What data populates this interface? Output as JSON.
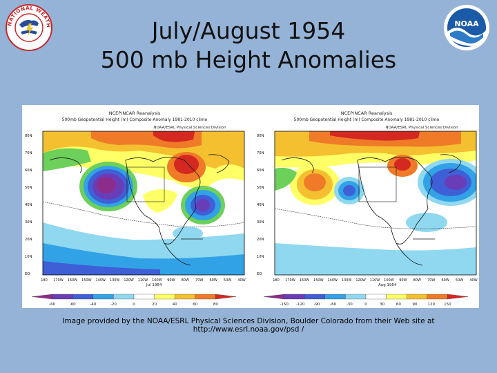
{
  "slide": {
    "title_line1": "July/August 1954",
    "title_line2": "500 mb Height Anomalies",
    "credit": "Image provided by the NOAA/ESRL Physical Sciences Division, Boulder Colorado from their Web site at http://www.esrl.noaa.gov/psd /"
  },
  "logos": {
    "nws": {
      "text": "NATIONAL WEATHER SERVICE",
      "icon": "nws-logo-icon"
    },
    "noaa": {
      "text": "NOAA",
      "icon": "noaa-logo-icon"
    }
  },
  "maps": [
    {
      "header1": "NCEP/NCAR Reanalysis",
      "header2": "500mb Geopotential Height (m) Composite Anomaly 1981-2010 climo",
      "header3": "NOAA/ESRL Physical Sciences Division",
      "month_label": "Jul 1954",
      "lat_labels": [
        "80N",
        "70N",
        "60N",
        "50N",
        "40N",
        "30N",
        "20N",
        "10N",
        "EQ"
      ],
      "lon_labels": [
        "180",
        "170W",
        "160W",
        "150W",
        "140W",
        "130W",
        "120W",
        "110W",
        "100W",
        "90W",
        "80W",
        "70W",
        "60W",
        "50W",
        "40W"
      ],
      "colorbar_ticks": [
        "-60",
        "-60",
        "-40",
        "-20",
        "0",
        "20",
        "40",
        "60",
        "80"
      ],
      "colorbar_colors": [
        "#8c2d8c",
        "#6a3db8",
        "#3f5fd6",
        "#32a2e6",
        "#8fd8f0",
        "#ffffff",
        "#ffff66",
        "#f4c030",
        "#ef7a28",
        "#d42820"
      ]
    },
    {
      "header1": "NCEP/NCAR Reanalysis",
      "header2": "500mb Geopotential Height (m) Composite Anomaly 1981-2010 climo",
      "header3": "NOAA/ESRL Physical Sciences Division",
      "month_label": "Aug 1954",
      "lat_labels": [
        "80N",
        "70N",
        "60N",
        "50N",
        "40N",
        "30N",
        "20N",
        "10N",
        "EQ"
      ],
      "lon_labels": [
        "180",
        "170W",
        "160W",
        "150W",
        "140W",
        "130W",
        "120W",
        "110W",
        "100W",
        "90W",
        "80W",
        "70W",
        "60W",
        "50W",
        "40W"
      ],
      "colorbar_ticks": [
        "-150",
        "-120",
        "-90",
        "-60",
        "-30",
        "0",
        "30",
        "60",
        "90",
        "120",
        "150"
      ],
      "colorbar_colors": [
        "#8c2d8c",
        "#6a3db8",
        "#3f5fd6",
        "#32a2e6",
        "#8fd8f0",
        "#ffffff",
        "#ffff66",
        "#f4c030",
        "#ef7a28",
        "#d42820"
      ]
    }
  ]
}
